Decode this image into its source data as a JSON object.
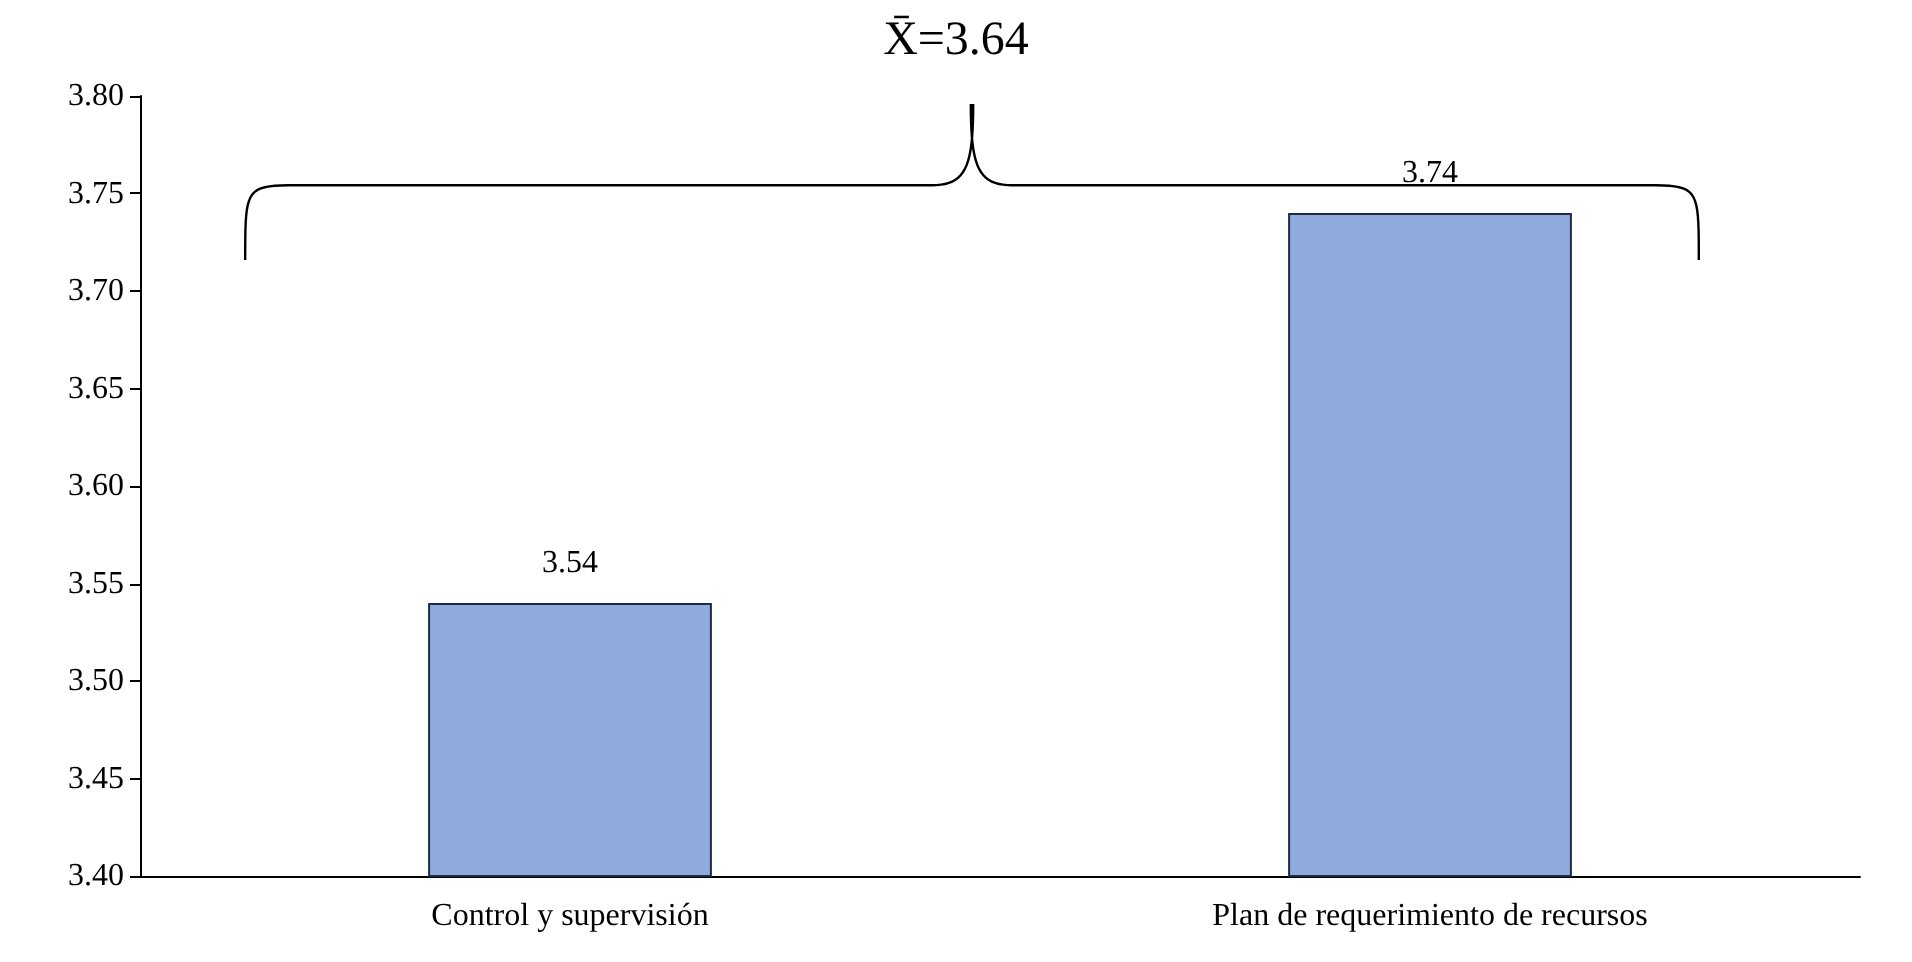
{
  "chart_data": {
    "type": "bar",
    "categories": [
      "Control y supervisión",
      "Plan de requerimiento de recursos"
    ],
    "values": [
      3.54,
      3.74
    ],
    "color": "#8faadc",
    "ylim": [
      3.4,
      3.8
    ],
    "yticks": [
      {
        "value": 3.4,
        "label": "3.40"
      },
      {
        "value": 3.45,
        "label": "3.45"
      },
      {
        "value": 3.5,
        "label": "3.50"
      },
      {
        "value": 3.55,
        "label": "3.55"
      },
      {
        "value": 3.6,
        "label": "3.60"
      },
      {
        "value": 3.65,
        "label": "3.65"
      },
      {
        "value": 3.7,
        "label": "3.70"
      },
      {
        "value": 3.75,
        "label": "3.75"
      },
      {
        "value": 3.8,
        "label": "3.80"
      }
    ],
    "data_labels": true,
    "grid": false,
    "annotations": [
      "X̄=3.64"
    ]
  }
}
